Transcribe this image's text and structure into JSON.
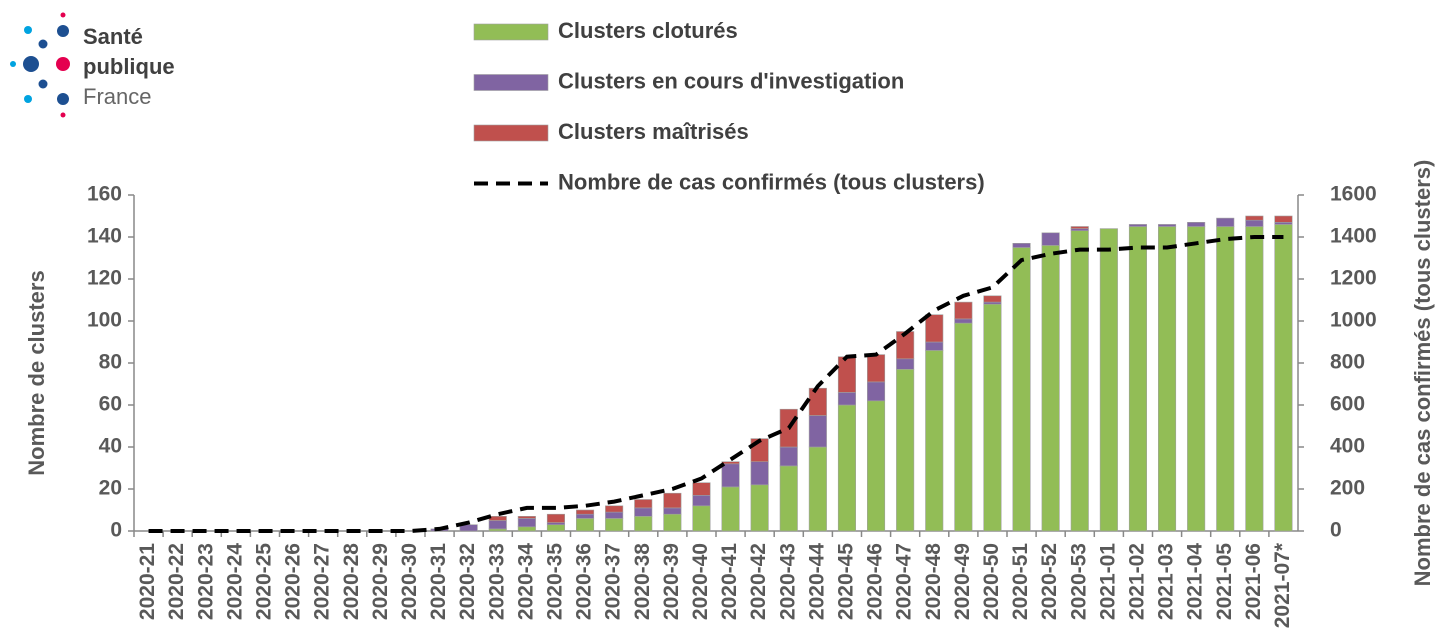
{
  "logo": {
    "lines": [
      "Santé",
      "publique",
      "France"
    ]
  },
  "chart_data": {
    "type": "bar",
    "categories": [
      "2020-21",
      "2020-22",
      "2020-23",
      "2020-24",
      "2020-25",
      "2020-26",
      "2020-27",
      "2020-28",
      "2020-29",
      "2020-30",
      "2020-31",
      "2020-32",
      "2020-33",
      "2020-34",
      "2020-35",
      "2020-36",
      "2020-37",
      "2020-38",
      "2020-39",
      "2020-40",
      "2020-41",
      "2020-42",
      "2020-43",
      "2020-44",
      "2020-45",
      "2020-46",
      "2020-47",
      "2020-48",
      "2020-49",
      "2020-50",
      "2020-51",
      "2020-52",
      "2020-53",
      "2021-01",
      "2021-02",
      "2021-03",
      "2021-04",
      "2021-05",
      "2021-06",
      "2021-07*"
    ],
    "series": [
      {
        "name": "Clusters cloturés",
        "color": "#92bd56",
        "values": [
          0,
          0,
          0,
          0,
          0,
          0,
          0,
          0,
          0,
          0,
          0,
          0,
          1,
          2,
          3,
          6,
          6,
          7,
          8,
          12,
          21,
          22,
          31,
          40,
          60,
          62,
          77,
          86,
          99,
          108,
          135,
          136,
          143,
          144,
          145,
          145,
          145,
          145,
          145,
          146
        ]
      },
      {
        "name": "Clusters en cours d'investigation",
        "color": "#8064a2",
        "values": [
          0,
          0,
          0,
          0,
          0,
          0,
          0,
          0,
          0,
          0,
          1,
          3,
          4,
          4,
          1,
          2,
          3,
          4,
          3,
          5,
          11,
          11,
          9,
          15,
          6,
          9,
          5,
          4,
          2,
          1,
          2,
          6,
          1,
          0,
          1,
          1,
          2,
          4,
          3,
          1
        ]
      },
      {
        "name": "Clusters maîtrisés",
        "color": "#c0504d",
        "values": [
          0,
          0,
          0,
          0,
          0,
          0,
          0,
          0,
          0,
          0,
          0,
          0,
          2,
          1,
          4,
          2,
          3,
          4,
          7,
          6,
          1,
          11,
          18,
          13,
          17,
          13,
          13,
          13,
          8,
          3,
          0,
          0,
          1,
          0,
          0,
          0,
          0,
          0,
          2,
          3
        ]
      },
      {
        "name": "Nombre de cas confirmés (tous clusters)",
        "type": "line",
        "axis": "y2",
        "color": "#000000",
        "values": [
          0,
          0,
          0,
          0,
          0,
          0,
          0,
          0,
          0,
          0,
          10,
          40,
          80,
          110,
          110,
          120,
          140,
          170,
          200,
          250,
          340,
          430,
          490,
          690,
          830,
          840,
          940,
          1050,
          1120,
          1160,
          1290,
          1320,
          1340,
          1340,
          1350,
          1350,
          1370,
          1390,
          1400,
          1400
        ]
      }
    ],
    "ylabel": "Nombre de clusters",
    "y2label": "Nombre de cas confirmés (tous clusters)",
    "ylim": [
      0,
      160
    ],
    "yticks": [
      0,
      20,
      40,
      60,
      80,
      100,
      120,
      140,
      160
    ],
    "y2lim": [
      0,
      1600
    ],
    "y2ticks": [
      0,
      200,
      400,
      600,
      800,
      1000,
      1200,
      1400,
      1600
    ],
    "stacked": true,
    "legend": "top"
  }
}
